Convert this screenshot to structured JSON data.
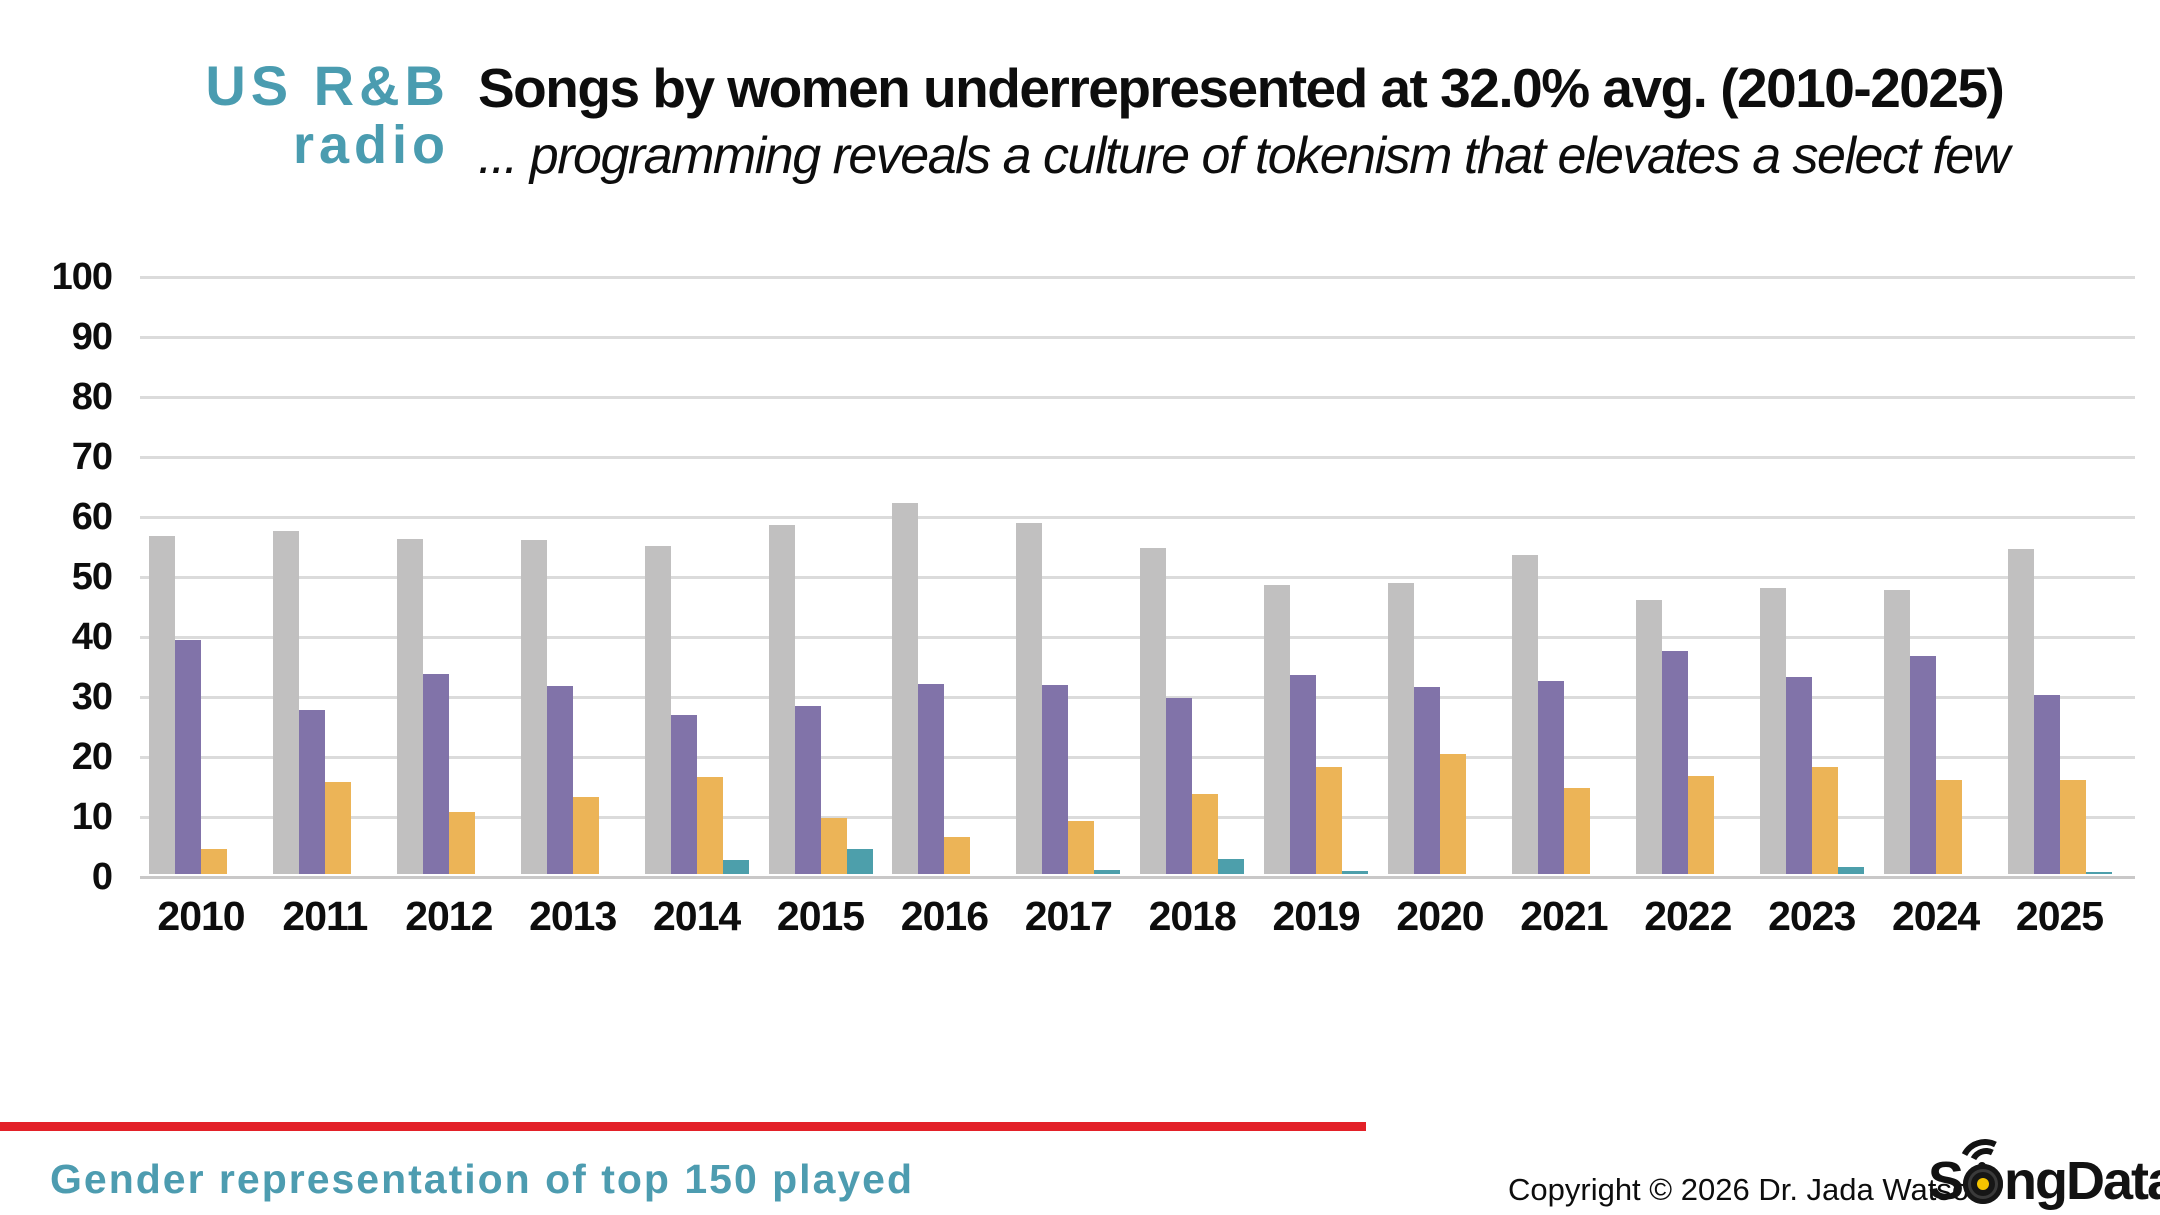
{
  "logo": {
    "line1": "US R&B",
    "line2": "radio"
  },
  "header": {
    "title": "Songs by women underrepresented at 32.0% avg. (2010-2025)",
    "subtitle": "... programming reveals a culture of tokenism that elevates a select few"
  },
  "chart_data": {
    "type": "bar",
    "title": "Songs by women underrepresented at 32.0% avg. (2010-2025)",
    "categories": [
      "2010",
      "2011",
      "2012",
      "2013",
      "2014",
      "2015",
      "2016",
      "2017",
      "2018",
      "2019",
      "2020",
      "2021",
      "2022",
      "2023",
      "2024",
      "2025"
    ],
    "series": [
      {
        "name": "gray",
        "color": "#c1c0c0",
        "values": [
          56.4,
          57.2,
          55.9,
          55.6,
          54.7,
          58.1,
          61.9,
          58.5,
          54.4,
          48.2,
          48.5,
          53.2,
          45.7,
          47.6,
          47.4,
          54.2
        ]
      },
      {
        "name": "purple",
        "color": "#8173a9",
        "values": [
          39.0,
          27.3,
          33.3,
          31.3,
          26.5,
          28.0,
          31.7,
          31.5,
          29.4,
          33.2,
          31.1,
          32.1,
          37.2,
          32.8,
          36.4,
          29.8
        ]
      },
      {
        "name": "orange",
        "color": "#ecb457",
        "values": [
          4.2,
          15.4,
          10.4,
          12.9,
          16.2,
          9.4,
          6.1,
          8.9,
          13.4,
          17.8,
          20.0,
          14.3,
          16.4,
          17.9,
          15.7,
          15.6
        ]
      },
      {
        "name": "teal",
        "color": "#4d9fab",
        "values": [
          0,
          0,
          0,
          0,
          2.3,
          4.2,
          0,
          0.7,
          2.5,
          0.5,
          0,
          0,
          0,
          1.1,
          0,
          0.4
        ]
      }
    ],
    "ylim": [
      0,
      100
    ],
    "yticks": [
      0,
      10,
      20,
      30,
      40,
      50,
      60,
      70,
      80,
      90,
      100
    ],
    "xlabel": "",
    "ylabel": "",
    "grid": true,
    "legend_position": "none"
  },
  "footer": {
    "tagline": "Gender representation of top 150 played",
    "copyright": "Copyright © 2026 Dr. Jada Watson",
    "brand_prefix": "S",
    "brand_suffix": "ngData"
  },
  "colors": {
    "accent_teal": "#4a9cb0",
    "accent_red": "#e32128",
    "gridline": "#dbdbdb"
  }
}
